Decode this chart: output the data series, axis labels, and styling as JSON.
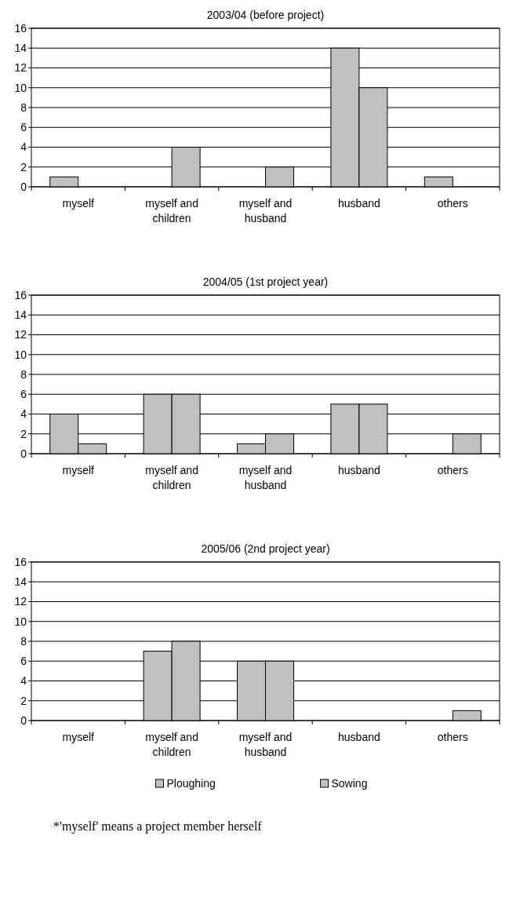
{
  "chart_data": [
    {
      "type": "bar",
      "title": "2003/04 (before project)",
      "categories": [
        "myself",
        "myself and children",
        "myself and husband",
        "husband",
        "others"
      ],
      "series": [
        {
          "color": "#c0c0c0",
          "values": [
            1,
            0,
            0,
            14,
            1
          ]
        },
        {
          "color": "#c0c0c0",
          "values": [
            0,
            4,
            2,
            10,
            0
          ]
        }
      ],
      "ylim": [
        0,
        16
      ],
      "yticks": [
        0,
        2,
        4,
        6,
        8,
        10,
        12,
        14,
        16
      ],
      "grid": "y",
      "legend": false
    },
    {
      "type": "bar",
      "title": "2004/05 (1st project year)",
      "categories": [
        "myself",
        "myself and children",
        "myself and husband",
        "husband",
        "others"
      ],
      "series": [
        {
          "color": "#c0c0c0",
          "values": [
            4,
            6,
            1,
            5,
            0
          ]
        },
        {
          "color": "#c0c0c0",
          "values": [
            1,
            6,
            2,
            5,
            2
          ]
        }
      ],
      "ylim": [
        0,
        16
      ],
      "yticks": [
        0,
        2,
        4,
        6,
        8,
        10,
        12,
        14,
        16
      ],
      "grid": "y",
      "legend": false
    },
    {
      "type": "bar",
      "title": "2005/06 (2nd project year)",
      "categories": [
        "myself",
        "myself and children",
        "myself and husband",
        "husband",
        "others"
      ],
      "series": [
        {
          "name": "Ploughing",
          "color": "#c0c0c0",
          "values": [
            0,
            7,
            6,
            0,
            0
          ]
        },
        {
          "name": "Sowing",
          "color": "#c0c0c0",
          "values": [
            0,
            8,
            6,
            0,
            1
          ]
        }
      ],
      "ylim": [
        0,
        16
      ],
      "yticks": [
        0,
        2,
        4,
        6,
        8,
        10,
        12,
        14,
        16
      ],
      "grid": "y",
      "legend": "bottom",
      "annotations": [
        "*'myself' means a project member herself"
      ]
    }
  ]
}
